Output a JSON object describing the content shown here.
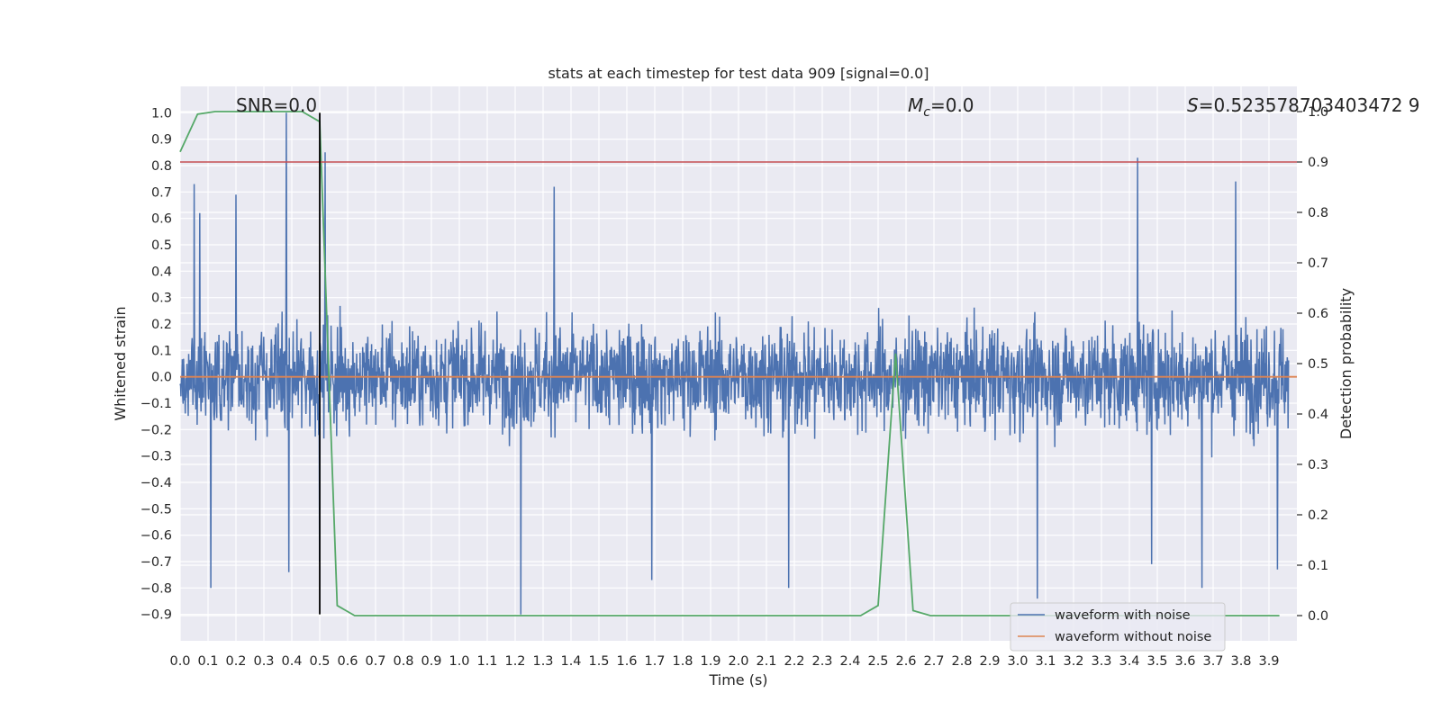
{
  "chart_data": {
    "type": "line",
    "title": "stats at each timestep for test data 909 [signal=0.0]",
    "xlabel": "Time (s)",
    "ylabel": "Whitened strain",
    "y2label": "Detection probability",
    "xlim": [
      0.0,
      4.0
    ],
    "ylim": [
      -1.0,
      1.1
    ],
    "y2lim": [
      -0.05,
      1.05
    ],
    "x_ticks": [
      0.0,
      0.1,
      0.2,
      0.3,
      0.4,
      0.5,
      0.6,
      0.7,
      0.8,
      0.9,
      1.0,
      1.1,
      1.2,
      1.3,
      1.4,
      1.5,
      1.6,
      1.7,
      1.8,
      1.9,
      2.0,
      2.1,
      2.2,
      2.3,
      2.4,
      2.5,
      2.6,
      2.7,
      2.8,
      2.9,
      3.0,
      3.1,
      3.2,
      3.3,
      3.4,
      3.5,
      3.6,
      3.7,
      3.8,
      3.9
    ],
    "y_ticks": [
      -0.9,
      -0.8,
      -0.7,
      -0.6,
      -0.5,
      -0.4,
      -0.3,
      -0.2,
      -0.1,
      0.0,
      0.1,
      0.2,
      0.3,
      0.4,
      0.5,
      0.6,
      0.7,
      0.8,
      0.9,
      1.0
    ],
    "y2_ticks": [
      0.0,
      0.1,
      0.2,
      0.3,
      0.4,
      0.5,
      0.6,
      0.7,
      0.8,
      0.9,
      1.0
    ],
    "grid": true,
    "legend_placement": "lower-right",
    "annotations": {
      "snr": "SNR=0.0",
      "mc_symbol": "M",
      "mc_sub": "c",
      "mc_value": "=0.0",
      "s_symbol": "S",
      "s_value": "=0.523578703403472 9"
    },
    "series": [
      {
        "name": "waveform with noise",
        "axis": "left",
        "color": "#4c72b0",
        "description_stats": {
          "typical_amplitude": 0.22,
          "max": 1.0,
          "min": -0.9
        },
        "spikes": [
          {
            "x": 0.05,
            "y": 0.73
          },
          {
            "x": 0.07,
            "y": 0.62
          },
          {
            "x": 0.11,
            "y": -0.8
          },
          {
            "x": 0.2,
            "y": 0.69
          },
          {
            "x": 0.38,
            "y": 1.0
          },
          {
            "x": 0.39,
            "y": -0.74
          },
          {
            "x": 0.52,
            "y": 0.85
          },
          {
            "x": 0.5,
            "y": -0.7
          },
          {
            "x": 1.22,
            "y": -0.9
          },
          {
            "x": 1.34,
            "y": 0.72
          },
          {
            "x": 1.69,
            "y": -0.77
          },
          {
            "x": 2.18,
            "y": -0.8
          },
          {
            "x": 3.07,
            "y": -0.84
          },
          {
            "x": 3.43,
            "y": 0.83
          },
          {
            "x": 3.48,
            "y": -0.71
          },
          {
            "x": 3.66,
            "y": -0.8
          },
          {
            "x": 3.78,
            "y": 0.74
          },
          {
            "x": 3.93,
            "y": -0.73
          }
        ]
      },
      {
        "name": "waveform without noise",
        "axis": "left",
        "color": "#dd8452",
        "x": [
          0.0,
          4.0
        ],
        "y": [
          0.0,
          0.0
        ]
      },
      {
        "name": "",
        "axis": "right",
        "color": "#55a868",
        "x": [
          0.0,
          0.0625,
          0.125,
          0.1875,
          0.25,
          0.3125,
          0.375,
          0.4375,
          0.5,
          0.5625,
          0.625,
          2.4375,
          2.5,
          2.5625,
          2.625,
          2.6875,
          3.9375
        ],
        "y": [
          0.92,
          0.995,
          1.0,
          1.0,
          1.0,
          1.0,
          1.0,
          1.0,
          0.98,
          0.02,
          0.0,
          0.0,
          0.02,
          0.52,
          0.01,
          0.0,
          0.0
        ]
      }
    ],
    "threshold_line": {
      "axis": "right",
      "y": 0.9,
      "color": "#c44e52"
    },
    "marker_line": {
      "x": 0.5,
      "color": "#000000"
    }
  }
}
